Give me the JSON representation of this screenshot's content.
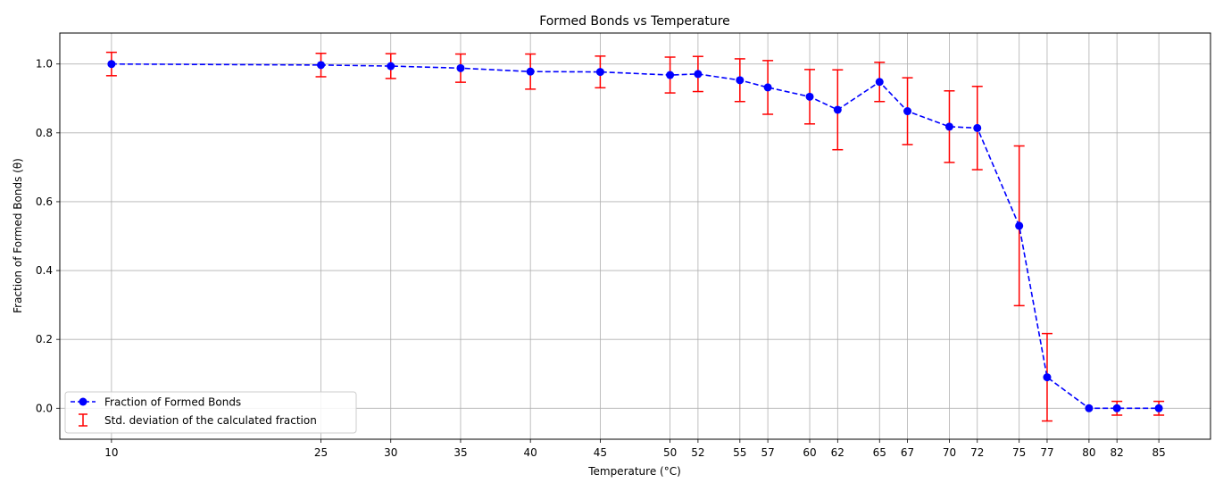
{
  "chart_data": {
    "type": "line",
    "title": "Formed Bonds vs Temperature",
    "xlabel": "Temperature (°C)",
    "ylabel": "Fraction of Formed Bonds (θ)",
    "x": [
      10,
      25,
      30,
      35,
      40,
      45,
      50,
      52,
      55,
      57,
      60,
      62,
      65,
      67,
      70,
      72,
      75,
      77,
      80,
      82,
      85
    ],
    "series": [
      {
        "name": "Fraction of Formed Bonds",
        "values": [
          1.0,
          0.997,
          0.994,
          0.988,
          0.978,
          0.977,
          0.968,
          0.971,
          0.953,
          0.932,
          0.905,
          0.867,
          0.948,
          0.863,
          0.818,
          0.814,
          0.53,
          0.09,
          0.0,
          0.0,
          0.0
        ],
        "color": "#0000ff",
        "line_style": "dashed",
        "marker": "circle"
      }
    ],
    "error_bars": {
      "name": "Std. deviation of the calculated fraction",
      "values": [
        0.034,
        0.034,
        0.036,
        0.041,
        0.051,
        0.046,
        0.052,
        0.051,
        0.062,
        0.078,
        0.079,
        0.116,
        0.057,
        0.097,
        0.104,
        0.121,
        0.232,
        0.127,
        0.0,
        0.02,
        0.02
      ],
      "color": "#ff0000"
    },
    "xlim": [
      6.3,
      88.7
    ],
    "ylim": [
      -0.09,
      1.09
    ],
    "xticks": [
      10,
      25,
      30,
      35,
      40,
      45,
      50,
      52,
      55,
      57,
      60,
      62,
      65,
      67,
      70,
      72,
      75,
      77,
      80,
      82,
      85
    ],
    "yticks": [
      0.0,
      0.2,
      0.4,
      0.6,
      0.8,
      1.0
    ],
    "ytick_labels": [
      "0.0",
      "0.2",
      "0.4",
      "0.6",
      "0.8",
      "1.0"
    ],
    "grid": true,
    "legend_position": "lower-left"
  }
}
